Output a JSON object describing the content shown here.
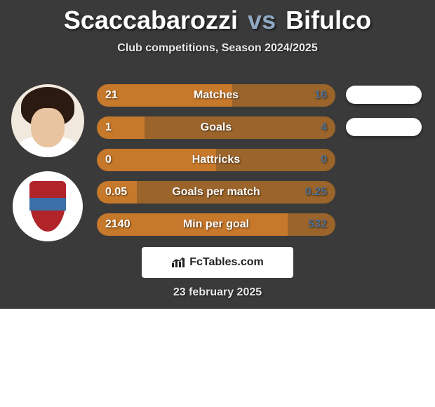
{
  "title": {
    "player1": "Scaccabarozzi",
    "vs": "vs",
    "player2": "Bifulco"
  },
  "subtitle": "Club competitions, Season 2024/2025",
  "date": "23 february 2025",
  "brand": "FcTables.com",
  "colors": {
    "card_bg": "#3a3a3a",
    "p1_bar": "#c6782b",
    "p2_bar": "#9a642a",
    "p1_val_text": "#ffffff",
    "p2_val_text": "#4e6e93",
    "title_accent": "#8fa8c2"
  },
  "rows": [
    {
      "label": "Matches",
      "left": "21",
      "right": "16",
      "left_pct": 56.8,
      "pill": true
    },
    {
      "label": "Goals",
      "left": "1",
      "right": "4",
      "left_pct": 20.0,
      "pill": true
    },
    {
      "label": "Hattricks",
      "left": "0",
      "right": "0",
      "left_pct": 50.0,
      "pill": false
    },
    {
      "label": "Goals per match",
      "left": "0.05",
      "right": "0.25",
      "left_pct": 16.7,
      "pill": false
    },
    {
      "label": "Min per goal",
      "left": "2140",
      "right": "532",
      "left_pct": 80.1,
      "pill": false
    }
  ]
}
